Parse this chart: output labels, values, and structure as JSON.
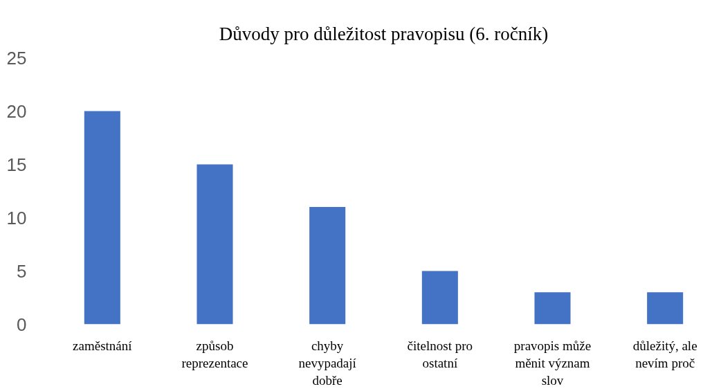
{
  "chart_data": {
    "type": "bar",
    "title": "Důvody pro důležitost pravopisu (6. ročník)",
    "categories": [
      "zaměstnání",
      "způsob reprezentace",
      "chyby nevypadají dobře",
      "čitelnost pro ostatní",
      "pravopis může měnit význam slov",
      "důležitý, ale nevím proč"
    ],
    "values": [
      20,
      15,
      11,
      5,
      3,
      3
    ],
    "color": "#4472c4",
    "ylim": [
      0,
      25
    ],
    "yticks": [
      0,
      5,
      10,
      15,
      20,
      25
    ],
    "grid": false
  }
}
